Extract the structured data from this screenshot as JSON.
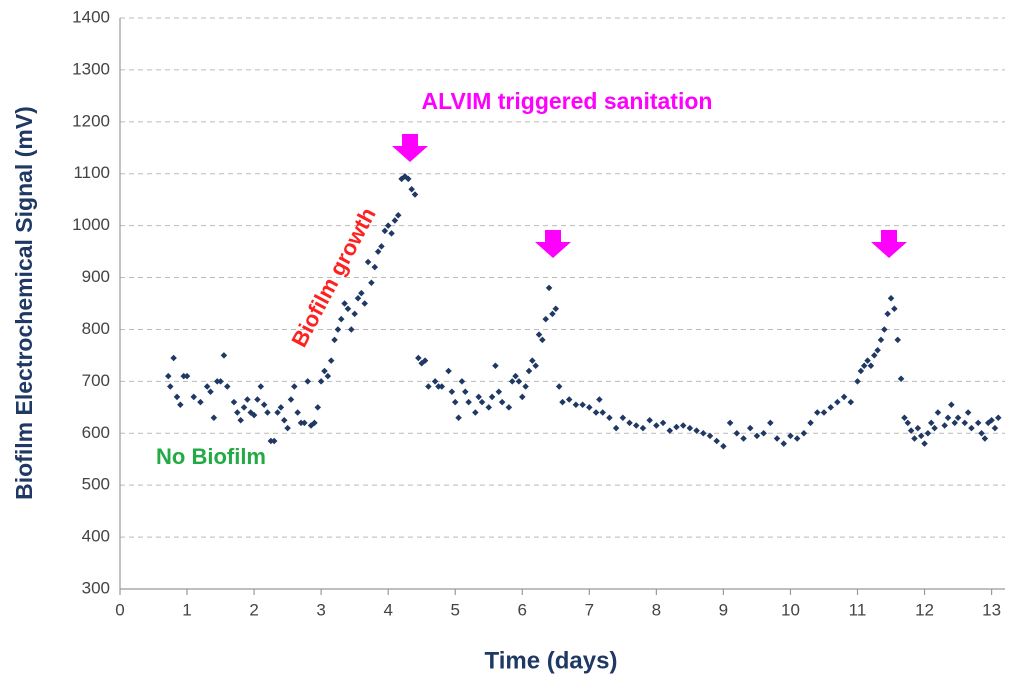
{
  "chart_data": {
    "type": "scatter",
    "x_label": "Time (days)",
    "y_label": "Biofilm Electrochemical Signal (mV)",
    "annotations": [
      {
        "text": "ALVIM triggered sanitation",
        "color": "#ff00ff"
      },
      {
        "text": "Biofilm growth",
        "color": "#ff2020"
      },
      {
        "text": "No Biofilm",
        "color": "#22aa44"
      }
    ],
    "color": "#1f3864",
    "xlim": [
      0,
      13.2
    ],
    "ylim": [
      300,
      1400
    ],
    "xticks": [
      0,
      1,
      2,
      3,
      4,
      5,
      6,
      7,
      8,
      9,
      10,
      11,
      12,
      13
    ],
    "yticks": [
      300,
      400,
      500,
      600,
      700,
      800,
      900,
      1000,
      1100,
      1200,
      1300,
      1400
    ],
    "grid": true,
    "x": [
      0.72,
      0.75,
      0.8,
      0.85,
      0.9,
      0.95,
      1.0,
      1.1,
      1.2,
      1.3,
      1.35,
      1.4,
      1.45,
      1.5,
      1.55,
      1.6,
      1.7,
      1.75,
      1.8,
      1.85,
      1.9,
      1.95,
      2.0,
      2.05,
      2.1,
      2.15,
      2.2,
      2.25,
      2.3,
      2.35,
      2.4,
      2.45,
      2.5,
      2.55,
      2.6,
      2.65,
      2.7,
      2.75,
      2.8,
      2.85,
      2.9,
      2.95,
      3.0,
      3.05,
      3.1,
      3.15,
      3.2,
      3.25,
      3.3,
      3.35,
      3.4,
      3.45,
      3.5,
      3.55,
      3.6,
      3.65,
      3.7,
      3.75,
      3.8,
      3.85,
      3.9,
      3.95,
      4.0,
      4.05,
      4.1,
      4.15,
      4.2,
      4.25,
      4.3,
      4.35,
      4.4,
      4.45,
      4.5,
      4.55,
      4.6,
      4.7,
      4.75,
      4.8,
      4.9,
      4.95,
      5.0,
      5.05,
      5.1,
      5.15,
      5.2,
      5.3,
      5.35,
      5.4,
      5.5,
      5.55,
      5.6,
      5.65,
      5.7,
      5.8,
      5.85,
      5.9,
      5.95,
      6.0,
      6.05,
      6.1,
      6.15,
      6.2,
      6.25,
      6.3,
      6.35,
      6.4,
      6.45,
      6.5,
      6.55,
      6.6,
      6.7,
      6.8,
      6.9,
      7.0,
      7.1,
      7.15,
      7.2,
      7.3,
      7.4,
      7.5,
      7.6,
      7.7,
      7.8,
      7.9,
      8.0,
      8.1,
      8.2,
      8.3,
      8.4,
      8.5,
      8.6,
      8.7,
      8.8,
      8.9,
      9.0,
      9.1,
      9.2,
      9.3,
      9.4,
      9.5,
      9.6,
      9.7,
      9.8,
      9.9,
      10.0,
      10.1,
      10.2,
      10.3,
      10.4,
      10.5,
      10.6,
      10.7,
      10.8,
      10.9,
      11.0,
      11.05,
      11.1,
      11.15,
      11.2,
      11.25,
      11.3,
      11.35,
      11.4,
      11.45,
      11.5,
      11.55,
      11.6,
      11.65,
      11.7,
      11.75,
      11.8,
      11.85,
      11.9,
      11.95,
      12.0,
      12.05,
      12.1,
      12.15,
      12.2,
      12.3,
      12.35,
      12.4,
      12.45,
      12.5,
      12.6,
      12.65,
      12.7,
      12.8,
      12.85,
      12.9,
      12.95,
      13.0,
      13.05,
      13.1
    ],
    "values": [
      710,
      690,
      745,
      670,
      655,
      710,
      710,
      670,
      660,
      690,
      680,
      630,
      700,
      700,
      750,
      690,
      660,
      640,
      625,
      650,
      665,
      640,
      635,
      665,
      690,
      655,
      640,
      585,
      585,
      640,
      650,
      625,
      610,
      665,
      690,
      640,
      620,
      620,
      700,
      615,
      620,
      650,
      700,
      720,
      710,
      740,
      780,
      800,
      820,
      850,
      840,
      800,
      830,
      860,
      870,
      850,
      930,
      890,
      920,
      950,
      960,
      990,
      1000,
      985,
      1010,
      1020,
      1090,
      1095,
      1090,
      1070,
      1060,
      745,
      735,
      740,
      690,
      700,
      690,
      690,
      720,
      680,
      660,
      630,
      700,
      680,
      660,
      640,
      670,
      660,
      650,
      670,
      730,
      680,
      660,
      650,
      700,
      710,
      700,
      670,
      690,
      720,
      740,
      730,
      790,
      780,
      820,
      880,
      830,
      840,
      690,
      660,
      665,
      655,
      655,
      650,
      640,
      665,
      640,
      630,
      610,
      630,
      620,
      615,
      610,
      625,
      615,
      620,
      605,
      612,
      615,
      610,
      605,
      600,
      595,
      585,
      575,
      620,
      600,
      590,
      610,
      595,
      600,
      620,
      590,
      580,
      595,
      590,
      600,
      620,
      640,
      640,
      650,
      660,
      670,
      660,
      700,
      720,
      730,
      740,
      730,
      750,
      760,
      780,
      800,
      830,
      860,
      840,
      780,
      705,
      630,
      620,
      605,
      590,
      610,
      595,
      580,
      600,
      620,
      610,
      640,
      615,
      630,
      655,
      620,
      630,
      620,
      640,
      610,
      620,
      600,
      590,
      620,
      625,
      610,
      630
    ]
  }
}
